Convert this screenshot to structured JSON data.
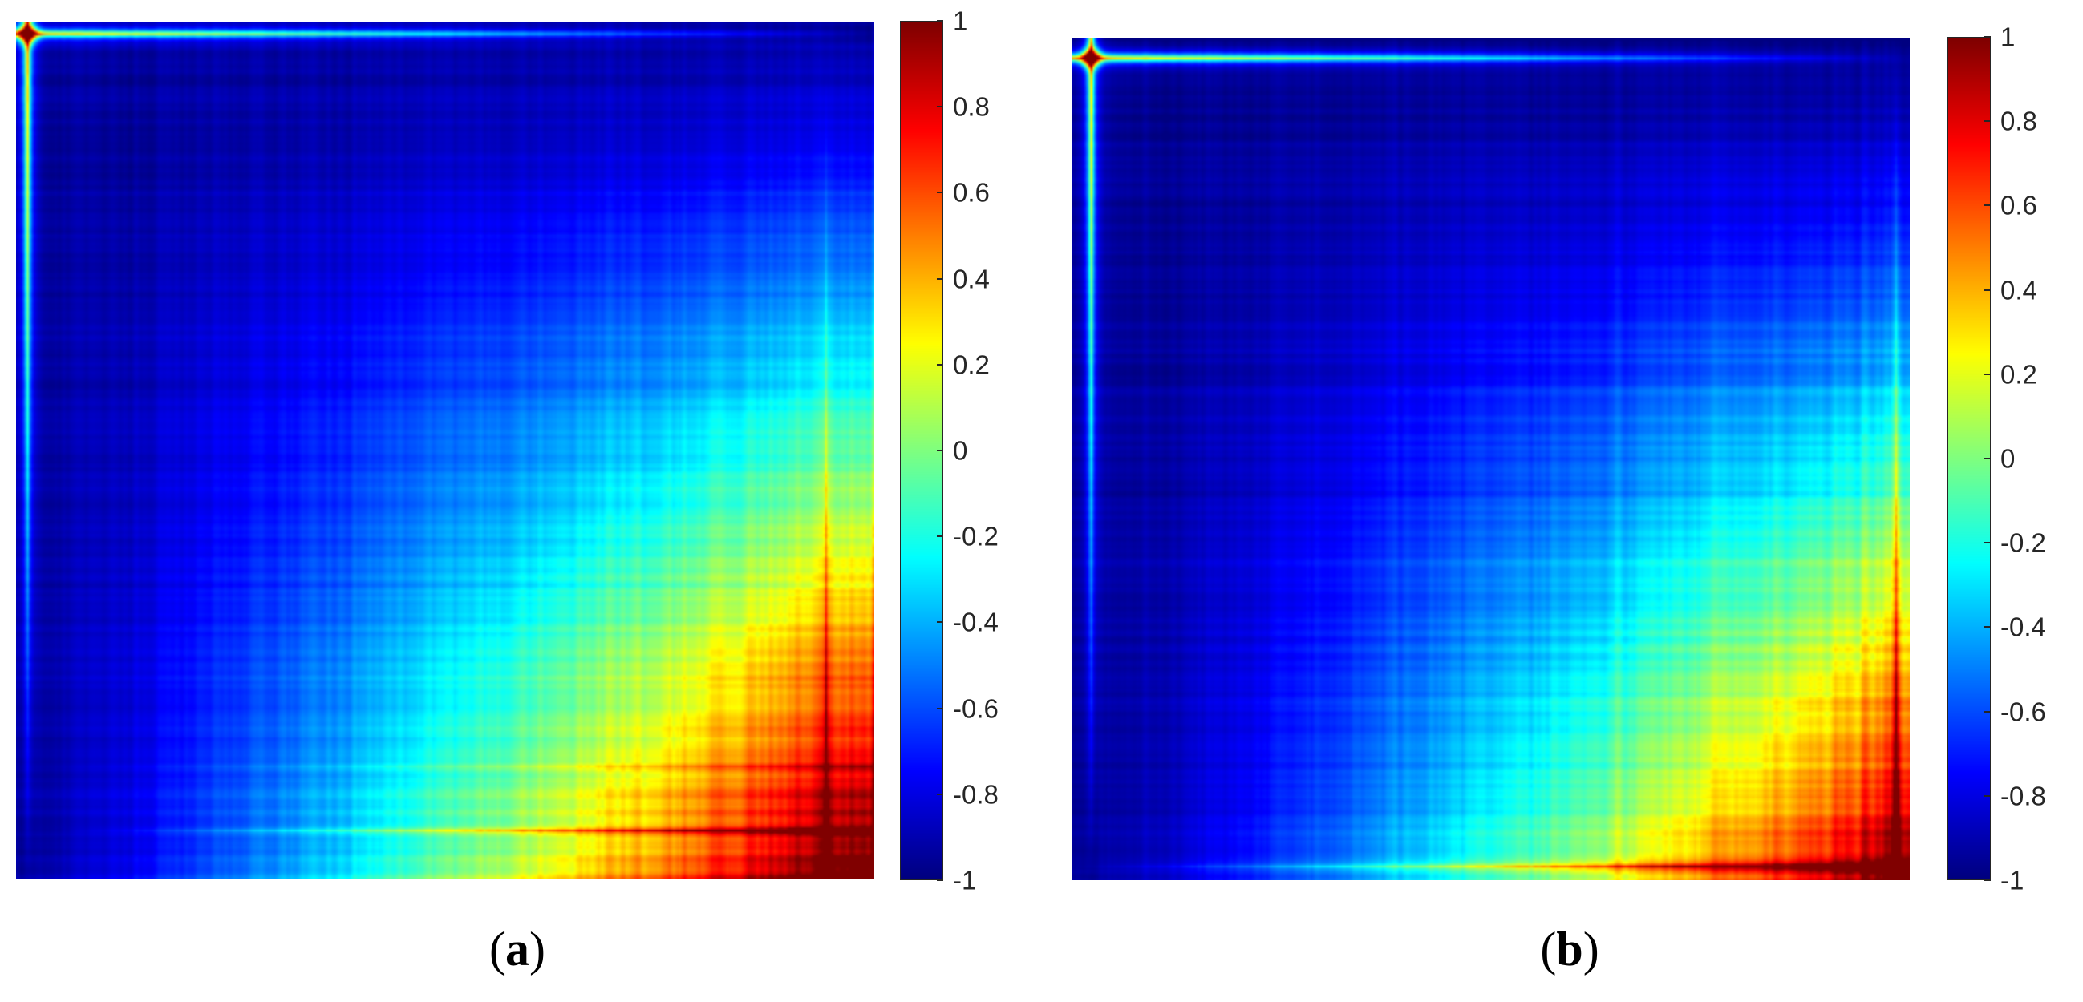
{
  "chart_data": [
    {
      "type": "heatmap",
      "panel_label": "a",
      "caption_open": "(",
      "caption_close": ")",
      "colormap": "jet",
      "colorbar": {
        "min": -1,
        "max": 1,
        "ticks": [
          1,
          0.8,
          0.6,
          0.4,
          0.2,
          0,
          -0.2,
          -0.4,
          -0.6,
          -0.8,
          -1
        ],
        "tick_labels": [
          "1",
          "0.8",
          "0.6",
          "0.4",
          "0.2",
          "0",
          "-0.2",
          "-0.4",
          "-0.6",
          "-0.8",
          "-1"
        ]
      },
      "description_values": {
        "corner_top_left": 1,
        "main_field": -0.95,
        "bottom_right_block": 0.85,
        "edge_lines": 0.4
      }
    },
    {
      "type": "heatmap",
      "panel_label": "b",
      "caption_open": "(",
      "caption_close": ")",
      "colormap": "jet",
      "colorbar": {
        "min": -1,
        "max": 1,
        "ticks": [
          1,
          0.8,
          0.6,
          0.4,
          0.2,
          0,
          -0.2,
          -0.4,
          -0.6,
          -0.8,
          -1
        ],
        "tick_labels": [
          "1",
          "0.8",
          "0.6",
          "0.4",
          "0.2",
          "0",
          "-0.2",
          "-0.4",
          "-0.6",
          "-0.8",
          "-1"
        ]
      },
      "description_values": {
        "corner_top_left": 1,
        "main_field": -0.97,
        "bottom_right_block": 0.8,
        "edge_lines": 0.4
      }
    }
  ]
}
